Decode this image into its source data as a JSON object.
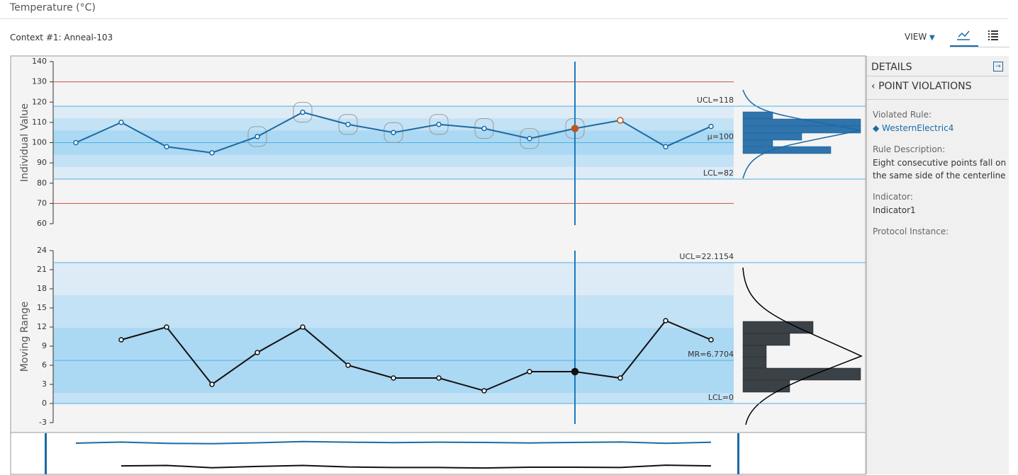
{
  "header": {
    "title": "Temperature (°C)",
    "context": "Context #1: Anneal-103",
    "view": "VIEW"
  },
  "chart_data": [
    {
      "type": "line",
      "ylabel": "Individual Value",
      "ylim": [
        60,
        140
      ],
      "yticks": [
        60,
        70,
        80,
        90,
        100,
        110,
        120,
        130,
        140
      ],
      "series": [
        {
          "color": "#1b6aa5",
          "values": [
            100,
            110,
            98,
            95,
            103,
            115,
            109,
            105,
            109,
            107,
            102,
            107,
            111,
            98,
            108
          ]
        }
      ],
      "control_lines": [
        {
          "label": "UCL=118",
          "value": 118
        },
        {
          "label": "μ=100",
          "value": 100
        },
        {
          "label": "LCL=82",
          "value": 82
        }
      ],
      "spec_limits": [
        130,
        70
      ],
      "spec_color": "#c9544a",
      "violations": [
        4,
        5,
        6,
        7,
        8,
        9,
        10,
        11
      ],
      "selected": 11,
      "flagged": 12,
      "flag_color": "#c0561e"
    },
    {
      "type": "line",
      "ylabel": "Moving Range",
      "ylim": [
        -3,
        24
      ],
      "yticks": [
        -3,
        0,
        3,
        6,
        9,
        12,
        15,
        18,
        21,
        24
      ],
      "series": [
        {
          "color": "#111111",
          "values": [
            null,
            10,
            12,
            3,
            8,
            12,
            6,
            4,
            4,
            2,
            5,
            5,
            4,
            13,
            10
          ]
        }
      ],
      "control_lines": [
        {
          "label": "UCL=22.1154",
          "value": 22.1154
        },
        {
          "label": "MR=6.7704",
          "value": 6.7704
        },
        {
          "label": "LCL=0",
          "value": 0
        }
      ],
      "selected": 11
    }
  ],
  "details": {
    "title": "DETAILS",
    "section": "POINT VIOLATIONS",
    "fields": [
      {
        "label": "Violated Rule:",
        "value": "WesternElectric4"
      },
      {
        "label": "Rule Description:",
        "value": "Eight consecutive points fall on the same side of the centerline"
      },
      {
        "label": "Indicator:",
        "value": "Indicator1"
      },
      {
        "label": "Protocol Instance:"
      }
    ]
  }
}
